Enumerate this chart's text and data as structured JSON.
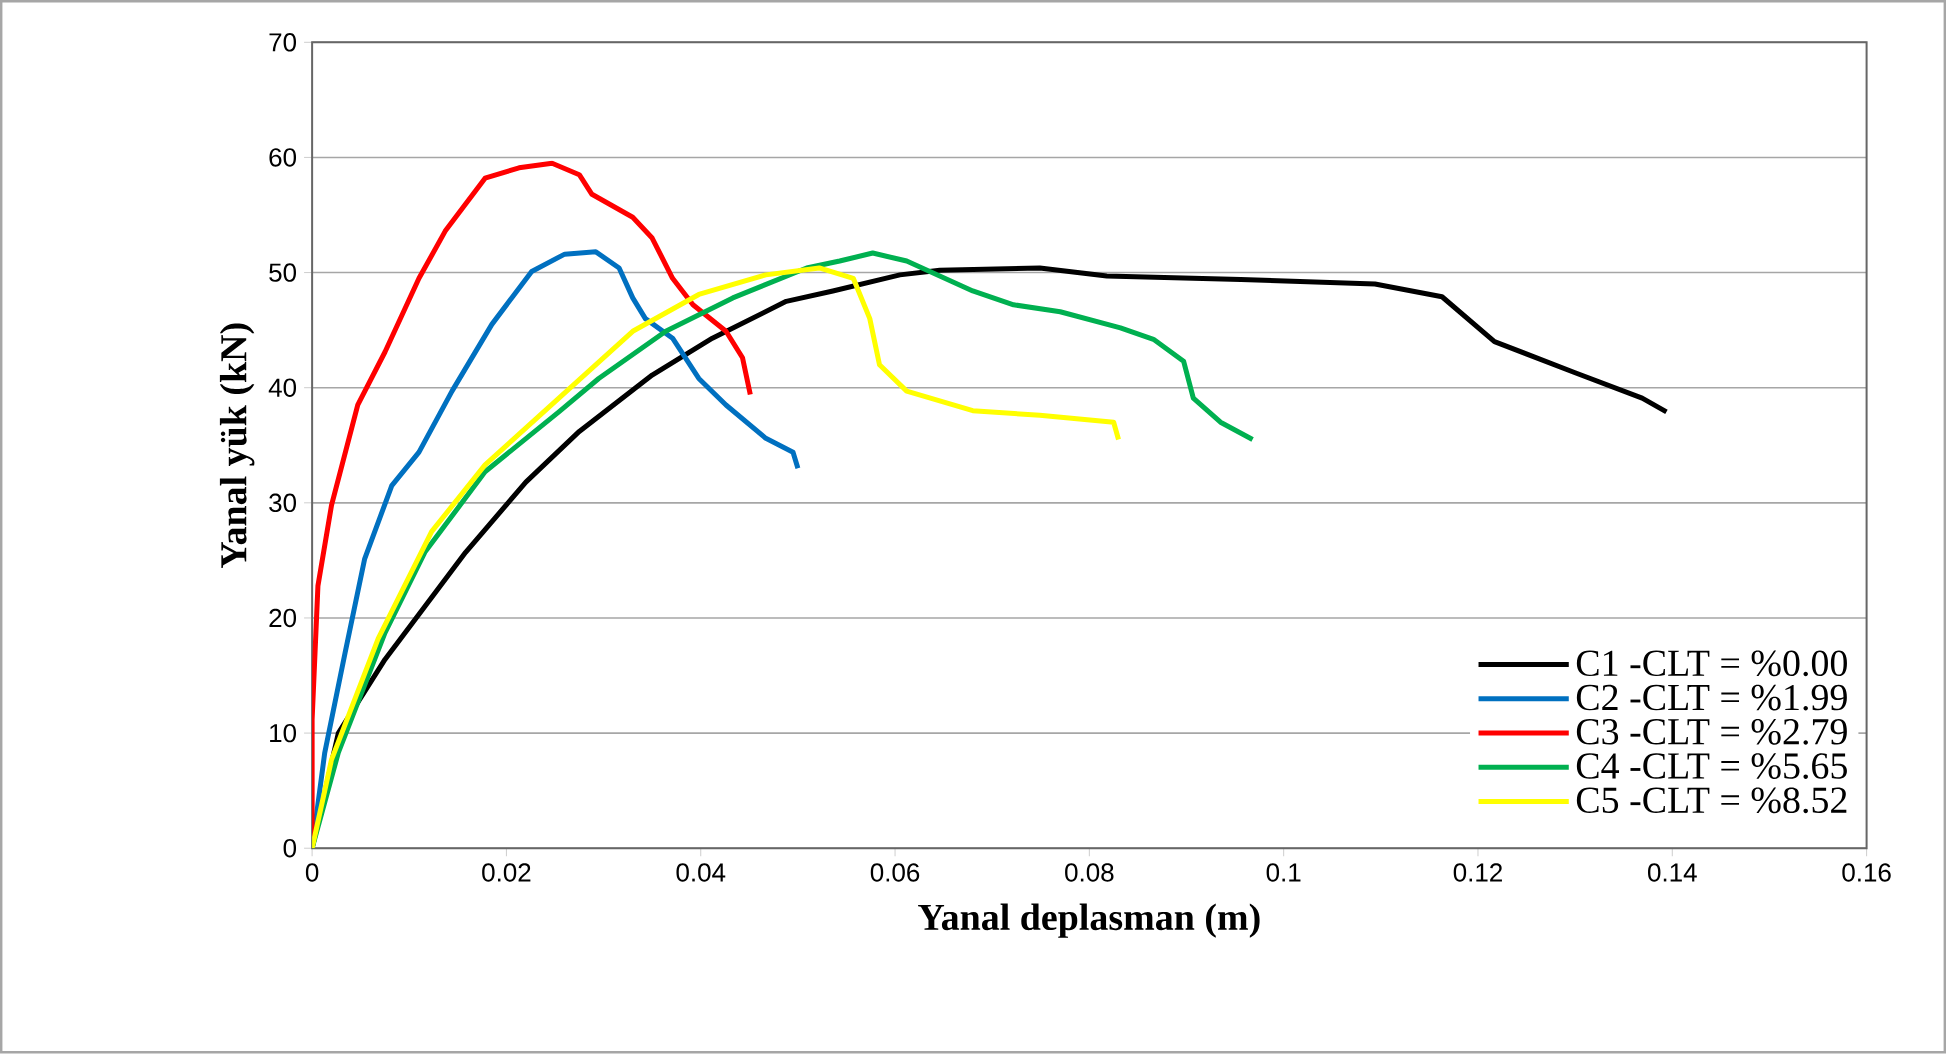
{
  "chart_data": {
    "type": "line",
    "xlabel": "Yanal deplasman (m)",
    "ylabel": "Yanal yük (kN)",
    "xlim": [
      0,
      0.16
    ],
    "xticks": [
      0,
      0.02,
      0.04,
      0.06,
      0.08,
      0.1,
      0.12,
      0.14,
      0.16
    ],
    "ylim": [
      0,
      70
    ],
    "yticks": [
      0,
      10,
      20,
      30,
      40,
      50,
      60,
      70
    ],
    "grid": "y",
    "legend": "bottom right",
    "marker": "none",
    "line_style": "solid",
    "series": [
      {
        "name": "C1 -CLT = %0.00",
        "color": "#000000",
        "x": [
          0,
          0.0027,
          0.0075,
          0.0158,
          0.022,
          0.0275,
          0.035,
          0.0412,
          0.0488,
          0.0536,
          0.0605,
          0.0646,
          0.0749,
          0.0818,
          0.0956,
          0.1094,
          0.1163,
          0.1217,
          0.13,
          0.1369,
          0.1394
        ],
        "values": [
          0,
          10,
          16.4,
          25.7,
          31.8,
          36.2,
          41.1,
          44.3,
          47.5,
          48.4,
          49.8,
          50.2,
          50.4,
          49.7,
          49.4,
          49,
          47.9,
          44,
          41.3,
          39.1,
          37.9
        ]
      },
      {
        "name": "C2 -CLT = %1.99",
        "color": "#0070c0",
        "x": [
          0,
          0.0013,
          0.0034,
          0.0054,
          0.0082,
          0.011,
          0.0144,
          0.0185,
          0.0226,
          0.026,
          0.0292,
          0.0316,
          0.033,
          0.0343,
          0.0371,
          0.0398,
          0.0426,
          0.0467,
          0.0495,
          0.05
        ],
        "values": [
          0,
          8.3,
          17,
          25.1,
          31.5,
          34.4,
          39.7,
          45.5,
          50.1,
          51.6,
          51.8,
          50.4,
          47.8,
          46,
          44.3,
          40.8,
          38.5,
          35.6,
          34.4,
          33
        ]
      },
      {
        "name": "C3 -CLT = %2.79",
        "color": "#ff0000",
        "x": [
          0,
          0,
          0.0006,
          0.002,
          0.0047,
          0.0075,
          0.011,
          0.0137,
          0.0178,
          0.0213,
          0.0247,
          0.0275,
          0.0288,
          0.033,
          0.035,
          0.0371,
          0.0392,
          0.0426,
          0.0443,
          0.0451
        ],
        "values": [
          0,
          11.2,
          22.8,
          29.8,
          38.5,
          43.1,
          49.5,
          53.6,
          58.2,
          59.1,
          59.5,
          58.5,
          56.8,
          54.8,
          53,
          49.5,
          47.2,
          44.9,
          42.6,
          39.4
        ]
      },
      {
        "name": "C4 -CLT = %5.65",
        "color": "#00b050",
        "x": [
          0,
          0.0027,
          0.0075,
          0.0116,
          0.0178,
          0.0254,
          0.0295,
          0.0364,
          0.0433,
          0.0509,
          0.0543,
          0.0577,
          0.0612,
          0.068,
          0.0722,
          0.077,
          0.0832,
          0.0866,
          0.0897,
          0.0907,
          0.0935,
          0.0968
        ],
        "values": [
          0,
          8.3,
          18.7,
          25.7,
          32.7,
          37.9,
          40.8,
          44.9,
          47.8,
          50.4,
          51,
          51.7,
          51,
          48.4,
          47.2,
          46.6,
          45.2,
          44.2,
          42.3,
          39.1,
          37,
          35.5
        ]
      },
      {
        "name": "C5 -CLT = %8.52",
        "color": "#ffff00",
        "x": [
          0,
          0.002,
          0.0068,
          0.0123,
          0.0178,
          0.0254,
          0.033,
          0.0398,
          0.0467,
          0.0522,
          0.0557,
          0.0574,
          0.0584,
          0.0612,
          0.068,
          0.0749,
          0.0825,
          0.083
        ],
        "values": [
          0,
          7.7,
          18.2,
          27.5,
          33.3,
          39.1,
          44.9,
          48.1,
          49.8,
          50.4,
          49.5,
          46,
          42,
          39.7,
          38,
          37.6,
          37,
          35.5
        ]
      }
    ]
  }
}
